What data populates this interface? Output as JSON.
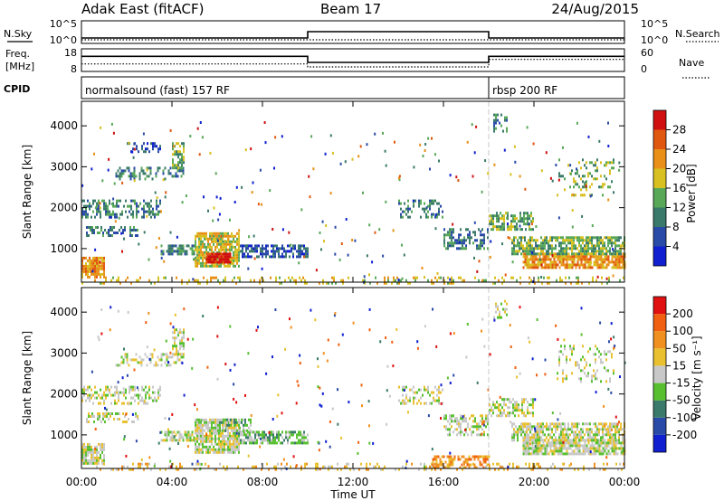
{
  "header": {
    "radar": "Adak East (fitACF)",
    "beam": "Beam 17",
    "date": "24/Aug/2015"
  },
  "chart_data": [
    {
      "type": "line",
      "panel": "noise",
      "ylabel_left": "N.Sky",
      "ylabel_right": "N.Search",
      "yticks": [
        "10^5",
        "10^0"
      ],
      "series": [
        {
          "name": "N.Sky",
          "style": "solid",
          "x": [
            0,
            10,
            10,
            18,
            18,
            24
          ],
          "y": [
            1.2,
            1.2,
            2.6,
            2.6,
            1.2,
            1.2
          ]
        },
        {
          "name": "N.Search",
          "style": "dotted",
          "x": [
            0,
            24
          ],
          "y": [
            0.8,
            0.8
          ]
        }
      ]
    },
    {
      "type": "line",
      "panel": "frequency",
      "ylabel_left_lines": [
        "Freq.",
        "[MHz]"
      ],
      "ylabel_right": "Nave",
      "yticks_left": [
        "18",
        "8"
      ],
      "yticks_right": [
        "60",
        "0"
      ],
      "series": [
        {
          "name": "Freq.",
          "style": "solid",
          "x": [
            0,
            10,
            10,
            18,
            18,
            24
          ],
          "y": [
            15,
            15,
            11,
            11,
            15,
            15
          ]
        },
        {
          "name": "Nave",
          "style": "dotted",
          "x": [
            0,
            10,
            10,
            18,
            18,
            24
          ],
          "y": [
            10,
            10,
            8,
            8,
            13,
            13
          ]
        }
      ]
    },
    {
      "type": "table",
      "panel": "cpid",
      "label": "CPID",
      "segments": [
        {
          "label": "normalsound (fast) 157 RF",
          "start": 0,
          "end": 18
        },
        {
          "label": "rbsp 200 RF",
          "start": 18,
          "end": 24
        }
      ]
    },
    {
      "type": "heatmap",
      "panel": "power",
      "ylabel": "Slant Range [km]",
      "ylim": [
        180,
        4600
      ],
      "yticks": [
        1000,
        2000,
        3000,
        4000
      ],
      "colorbar_label": "Power [dB]",
      "colorbar_ticks": [
        "4",
        "8",
        "12",
        "16",
        "20",
        "24",
        "28"
      ],
      "colorbar_colors": [
        "#1020d0",
        "#2a4aa8",
        "#3a7a6a",
        "#58a858",
        "#d8c020",
        "#e89018",
        "#e05810",
        "#d01010"
      ],
      "regions": [
        {
          "t0": 0.0,
          "t1": 1.0,
          "r0": 300,
          "r1": 800,
          "density": 0.8,
          "level": 5
        },
        {
          "t0": 0.2,
          "t1": 2.5,
          "r0": 1350,
          "r1": 1550,
          "density": 0.5,
          "level": 2
        },
        {
          "t0": 0.0,
          "t1": 3.5,
          "r0": 1800,
          "r1": 2200,
          "density": 0.45,
          "level": 2
        },
        {
          "t0": 1.5,
          "t1": 4.5,
          "r0": 2700,
          "r1": 3000,
          "density": 0.4,
          "level": 2
        },
        {
          "t0": 2.0,
          "t1": 3.5,
          "r0": 3400,
          "r1": 3600,
          "density": 0.35,
          "level": 1
        },
        {
          "t0": 4.0,
          "t1": 4.5,
          "r0": 3000,
          "r1": 3600,
          "density": 0.6,
          "level": 3
        },
        {
          "t0": 3.5,
          "t1": 5.0,
          "r0": 900,
          "r1": 1100,
          "density": 0.7,
          "level": 2
        },
        {
          "t0": 5.0,
          "t1": 7.0,
          "r0": 600,
          "r1": 1400,
          "density": 0.8,
          "level": 4
        },
        {
          "t0": 5.5,
          "t1": 6.6,
          "r0": 650,
          "r1": 900,
          "density": 0.9,
          "level": 7
        },
        {
          "t0": 7.0,
          "t1": 10.0,
          "r0": 800,
          "r1": 1100,
          "density": 0.7,
          "level": 1
        },
        {
          "t0": 0.0,
          "t1": 24.0,
          "r0": 180,
          "r1": 320,
          "density": 0.22,
          "level": 4
        },
        {
          "t0": 14.0,
          "t1": 16.0,
          "r0": 1800,
          "r1": 2200,
          "density": 0.35,
          "level": 2
        },
        {
          "t0": 16.0,
          "t1": 18.0,
          "r0": 1000,
          "r1": 1500,
          "density": 0.5,
          "level": 2
        },
        {
          "t0": 18.0,
          "t1": 20.0,
          "r0": 1500,
          "r1": 1900,
          "density": 0.55,
          "level": 3
        },
        {
          "t0": 19.5,
          "t1": 24.0,
          "r0": 550,
          "r1": 900,
          "density": 0.85,
          "level": 5
        },
        {
          "t0": 19.0,
          "t1": 24.0,
          "r0": 900,
          "r1": 1300,
          "density": 0.7,
          "level": 3
        },
        {
          "t0": 21.0,
          "t1": 23.5,
          "r0": 2300,
          "r1": 3200,
          "density": 0.2,
          "level": 3
        },
        {
          "t0": 18.2,
          "t1": 18.8,
          "r0": 3900,
          "r1": 4300,
          "density": 0.35,
          "level": 2
        }
      ]
    },
    {
      "type": "heatmap",
      "panel": "velocity",
      "ylabel": "Slant Range [km]",
      "ylim": [
        180,
        4600
      ],
      "yticks": [
        1000,
        2000,
        3000,
        4000
      ],
      "xlabel": "Time UT",
      "xlim": [
        0,
        24
      ],
      "xticks": [
        "00:00",
        "04:00",
        "08:00",
        "12:00",
        "16:00",
        "20:00",
        "00:00"
      ],
      "colorbar_label": "Velocity [m s⁻¹]",
      "colorbar_ticks": [
        "200",
        "100",
        "50",
        "15",
        "-15",
        "-50",
        "-100",
        "-200"
      ],
      "colorbar_colors": [
        "#1020d0",
        "#2a4aa8",
        "#3a7a6a",
        "#58c030",
        "#c8c8c8",
        "#e8c030",
        "#f09020",
        "#f06010",
        "#e01010"
      ],
      "regions": [
        {
          "t0": 0.0,
          "t1": 1.0,
          "r0": 300,
          "r1": 800,
          "density": 0.8,
          "level": 4
        },
        {
          "t0": 0.2,
          "t1": 2.5,
          "r0": 1350,
          "r1": 1550,
          "density": 0.5,
          "level": 4
        },
        {
          "t0": 0.0,
          "t1": 3.5,
          "r0": 1800,
          "r1": 2200,
          "density": 0.45,
          "level": 4
        },
        {
          "t0": 1.5,
          "t1": 4.5,
          "r0": 2700,
          "r1": 3000,
          "density": 0.4,
          "level": 4
        },
        {
          "t0": 4.0,
          "t1": 4.5,
          "r0": 3000,
          "r1": 3600,
          "density": 0.6,
          "level": 4
        },
        {
          "t0": 3.5,
          "t1": 5.0,
          "r0": 900,
          "r1": 1100,
          "density": 0.7,
          "level": 4
        },
        {
          "t0": 5.0,
          "t1": 7.0,
          "r0": 600,
          "r1": 1400,
          "density": 0.85,
          "level": 4
        },
        {
          "t0": 7.0,
          "t1": 10.0,
          "r0": 800,
          "r1": 1100,
          "density": 0.7,
          "level": 3
        },
        {
          "t0": 6.0,
          "t1": 7.5,
          "r0": 1100,
          "r1": 1400,
          "density": 0.5,
          "level": 3
        },
        {
          "t0": 0.0,
          "t1": 24.0,
          "r0": 180,
          "r1": 320,
          "density": 0.22,
          "level": 5
        },
        {
          "t0": 15.5,
          "t1": 18.0,
          "r0": 200,
          "r1": 500,
          "density": 0.5,
          "level": 6
        },
        {
          "t0": 14.0,
          "t1": 16.0,
          "r0": 1800,
          "r1": 2200,
          "density": 0.35,
          "level": 4
        },
        {
          "t0": 16.0,
          "t1": 18.0,
          "r0": 1000,
          "r1": 1500,
          "density": 0.5,
          "level": 4
        },
        {
          "t0": 18.0,
          "t1": 20.0,
          "r0": 1500,
          "r1": 1900,
          "density": 0.55,
          "level": 4
        },
        {
          "t0": 19.5,
          "t1": 24.0,
          "r0": 550,
          "r1": 900,
          "density": 0.85,
          "level": 4
        },
        {
          "t0": 19.0,
          "t1": 24.0,
          "r0": 900,
          "r1": 1300,
          "density": 0.7,
          "level": 4
        },
        {
          "t0": 21.0,
          "t1": 23.5,
          "r0": 2300,
          "r1": 3200,
          "density": 0.2,
          "level": 4
        },
        {
          "t0": 18.2,
          "t1": 18.8,
          "r0": 3900,
          "r1": 4300,
          "density": 0.35,
          "level": 4
        }
      ]
    }
  ]
}
